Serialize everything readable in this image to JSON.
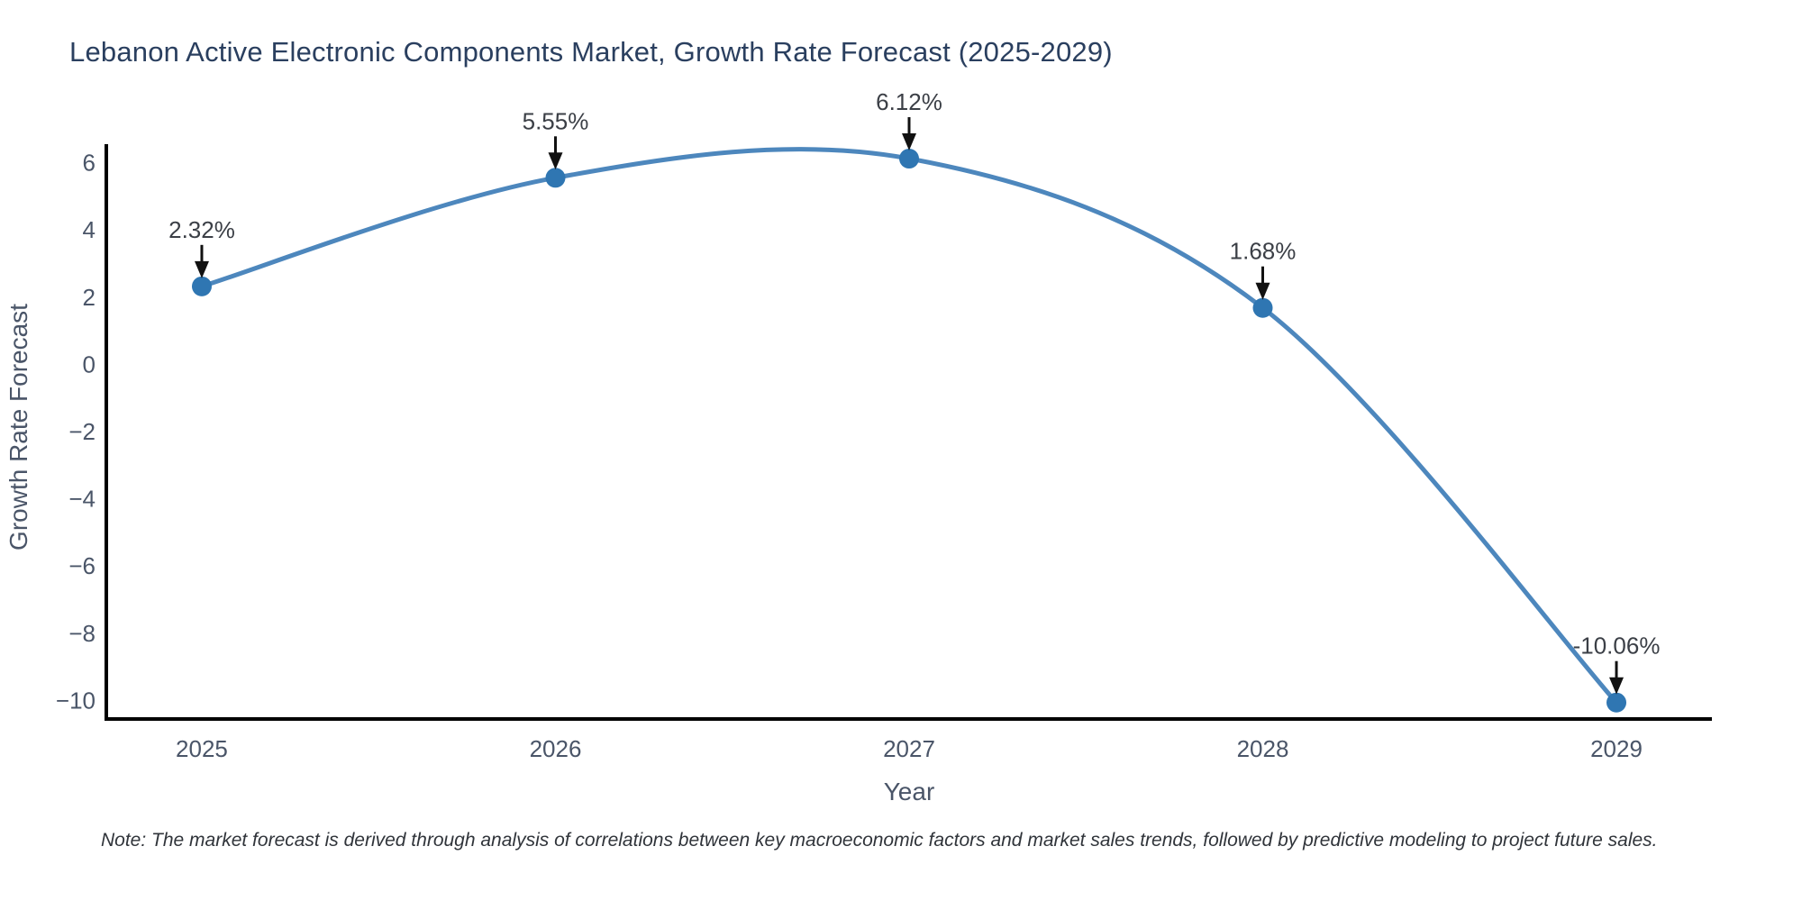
{
  "title": "Lebanon Active Electronic Components Market, Growth Rate Forecast (2025-2029)",
  "note": "Note: The market forecast is derived through analysis of correlations between key macroeconomic factors and market sales trends, followed by predictive modeling to project future sales.",
  "chart_data": {
    "type": "line",
    "title": "Lebanon Active Electronic Components Market, Growth Rate Forecast (2025-2029)",
    "xlabel": "Year",
    "ylabel": "Growth Rate Forecast",
    "x": [
      2025,
      2026,
      2027,
      2028,
      2029
    ],
    "series": [
      {
        "name": "Growth Rate Forecast",
        "values": [
          2.32,
          5.55,
          6.12,
          1.68,
          -10.06
        ]
      }
    ],
    "point_labels": [
      "2.32%",
      "5.55%",
      "6.12%",
      "1.68%",
      "-10.06%"
    ],
    "xtick_labels": [
      "2025",
      "2026",
      "2027",
      "2028",
      "2029"
    ],
    "ytick_values": [
      6,
      4,
      2,
      0,
      -2,
      -4,
      -6,
      -8,
      -10
    ],
    "ytick_labels": [
      "6",
      "4",
      "2",
      "0",
      "−2",
      "−4",
      "−6",
      "−8",
      "−10"
    ],
    "xlim": [
      2024.73,
      2029.27
    ],
    "ylim": [
      -10.55,
      6.55
    ],
    "grid": false,
    "legend": "none",
    "smooth": true,
    "colors": {
      "line": "#4d87bd",
      "marker": "#2f76b2",
      "axis": "#000000",
      "arrow": "#111111",
      "tick_text": "#4a5568",
      "axis_title_text": "#4a5568",
      "annotation_text": "#3b3f46",
      "title_text": "#2a3f5f"
    }
  }
}
